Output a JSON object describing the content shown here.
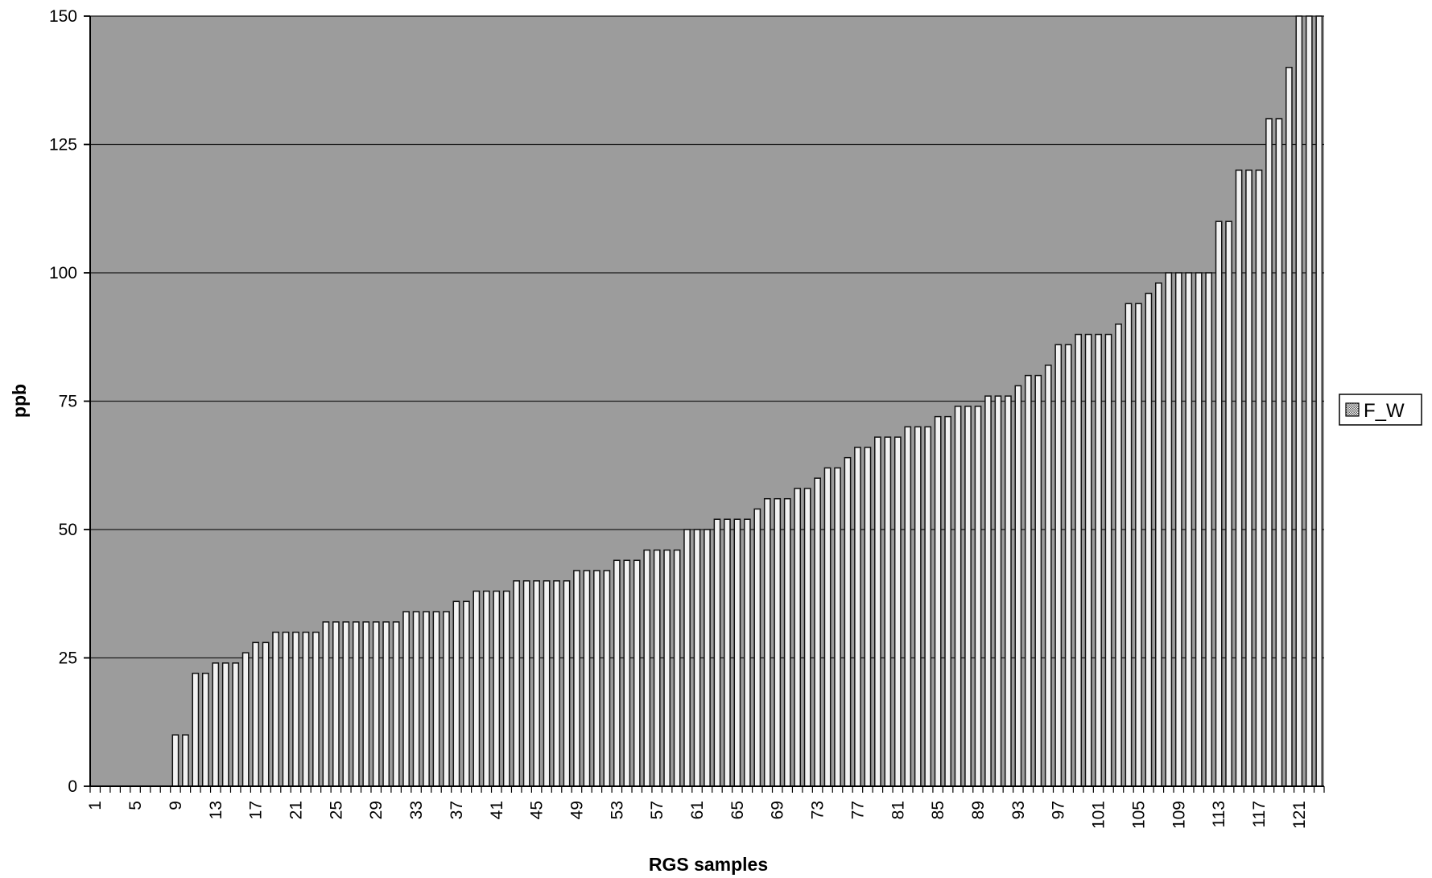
{
  "chart_data": {
    "type": "bar",
    "title": "",
    "xlabel": "RGS samples",
    "ylabel": "ppb",
    "ylim": [
      0,
      150
    ],
    "yticks": [
      0,
      25,
      50,
      75,
      100,
      125,
      150
    ],
    "xtick_labels": [
      "1",
      "5",
      "9",
      "13",
      "17",
      "21",
      "25",
      "29",
      "33",
      "37",
      "41",
      "45",
      "49",
      "53",
      "57",
      "61",
      "65",
      "69",
      "73",
      "77",
      "81",
      "85",
      "89",
      "93",
      "97",
      "101",
      "105",
      "109",
      "113",
      "117",
      "121"
    ],
    "grid": true,
    "legend_position": "right",
    "plot_background": "#9c9c9c",
    "bar_fill": "#f2f2f2",
    "bar_edge": "#111111",
    "categories": [
      "1",
      "2",
      "3",
      "4",
      "5",
      "6",
      "7",
      "8",
      "9",
      "10",
      "11",
      "12",
      "13",
      "14",
      "15",
      "16",
      "17",
      "18",
      "19",
      "20",
      "21",
      "22",
      "23",
      "24",
      "25",
      "26",
      "27",
      "28",
      "29",
      "30",
      "31",
      "32",
      "33",
      "34",
      "35",
      "36",
      "37",
      "38",
      "39",
      "40",
      "41",
      "42",
      "43",
      "44",
      "45",
      "46",
      "47",
      "48",
      "49",
      "50",
      "51",
      "52",
      "53",
      "54",
      "55",
      "56",
      "57",
      "58",
      "59",
      "60",
      "61",
      "62",
      "63",
      "64",
      "65",
      "66",
      "67",
      "68",
      "69",
      "70",
      "71",
      "72",
      "73",
      "74",
      "75",
      "76",
      "77",
      "78",
      "79",
      "80",
      "81",
      "82",
      "83",
      "84",
      "85",
      "86",
      "87",
      "88",
      "89",
      "90",
      "91",
      "92",
      "93",
      "94",
      "95",
      "96",
      "97",
      "98",
      "99",
      "100",
      "101",
      "102",
      "103",
      "104",
      "105",
      "106",
      "107",
      "108",
      "109",
      "110",
      "111",
      "112",
      "113",
      "114",
      "115",
      "116",
      "117",
      "118",
      "119",
      "120",
      "121",
      "122",
      "123"
    ],
    "series": [
      {
        "name": "F_W",
        "values": [
          0,
          0,
          0,
          0,
          0,
          0,
          0,
          0,
          10,
          10,
          22,
          22,
          24,
          24,
          24,
          26,
          28,
          28,
          30,
          30,
          30,
          30,
          30,
          32,
          32,
          32,
          32,
          32,
          32,
          32,
          32,
          34,
          34,
          34,
          34,
          34,
          36,
          36,
          38,
          38,
          38,
          38,
          40,
          40,
          40,
          40,
          40,
          40,
          42,
          42,
          42,
          42,
          44,
          44,
          44,
          46,
          46,
          46,
          46,
          50,
          50,
          50,
          52,
          52,
          52,
          52,
          54,
          56,
          56,
          56,
          58,
          58,
          60,
          62,
          62,
          64,
          66,
          66,
          68,
          68,
          68,
          70,
          70,
          70,
          72,
          72,
          74,
          74,
          74,
          76,
          76,
          76,
          78,
          80,
          80,
          82,
          86,
          86,
          88,
          88,
          88,
          88,
          90,
          94,
          94,
          96,
          98,
          100,
          100,
          100,
          100,
          100,
          110,
          110,
          120,
          120,
          120,
          130,
          130,
          140,
          150,
          150,
          150
        ]
      }
    ]
  }
}
